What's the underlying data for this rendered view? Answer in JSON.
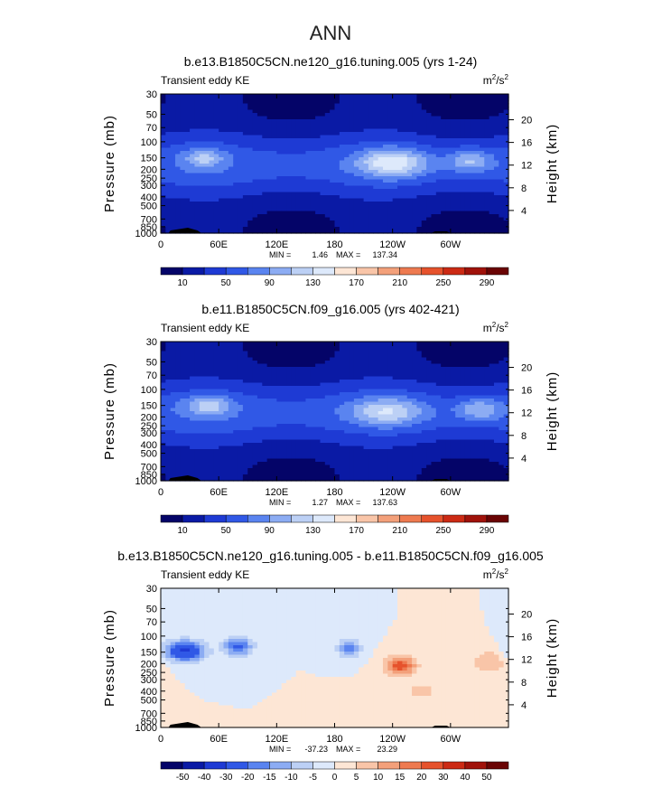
{
  "figure_title": "ANN",
  "chart_data": [
    {
      "type": "heatmap",
      "title": "b.e13.B1850C5CN.ne120_g16.tuning.005 (yrs 1-24)",
      "left_label": "Transient eddy KE",
      "units": "m²/s²",
      "units_base": "m",
      "units_exp1": "2",
      "units_mid": "/s",
      "units_exp2": "2",
      "ylabel": "Pressure (mb)",
      "ylabel_right": "Height (km)",
      "pressure_ticks": [
        "30",
        "50",
        "70",
        "100",
        "150",
        "200",
        "250",
        "300",
        "400",
        "500",
        "700",
        "850",
        "1000"
      ],
      "height_ticks": [
        "20",
        "16",
        "12",
        "8",
        "4"
      ],
      "xticks": [
        "0",
        "60E",
        "120E",
        "180",
        "120W",
        "60W"
      ],
      "min_label": "MIN =",
      "min_value": "1.46",
      "max_label": "MAX =",
      "max_value": "137.34",
      "colorbar_labels": [
        "10",
        "50",
        "90",
        "130",
        "170",
        "210",
        "250",
        "290"
      ],
      "colorbar_colors": [
        "#040468",
        "#0a1aa5",
        "#1e3ad4",
        "#3058e6",
        "#5a84f0",
        "#8cacf3",
        "#bcd0f5",
        "#dde9fb",
        "#fde6d5",
        "#f9c5a8",
        "#f3a07a",
        "#ee7a50",
        "#e6522c",
        "#cc2a14",
        "#a0120a",
        "#6a0404"
      ],
      "levels": [
        0,
        10,
        30,
        50,
        70,
        90,
        110,
        130,
        150,
        170,
        190,
        210,
        230,
        250,
        270,
        290
      ],
      "kind": "abs",
      "features": [
        {
          "lon": 45,
          "p": 150,
          "amp": 105,
          "wlon": 22,
          "wlogp": 0.11
        },
        {
          "lon": 240,
          "p": 170,
          "amp": 137,
          "wlon": 34,
          "wlogp": 0.15
        },
        {
          "lon": 320,
          "p": 160,
          "amp": 110,
          "wlon": 22,
          "wlogp": 0.12
        }
      ]
    },
    {
      "type": "heatmap",
      "title": "b.e11.B1850C5CN.f09_g16.005 (yrs 402-421)",
      "left_label": "Transient eddy KE",
      "units": "m²/s²",
      "units_base": "m",
      "units_exp1": "2",
      "units_mid": "/s",
      "units_exp2": "2",
      "ylabel": "Pressure (mb)",
      "ylabel_right": "Height (km)",
      "pressure_ticks": [
        "30",
        "50",
        "70",
        "100",
        "150",
        "200",
        "250",
        "300",
        "400",
        "500",
        "700",
        "850",
        "1000"
      ],
      "height_ticks": [
        "20",
        "16",
        "12",
        "8",
        "4"
      ],
      "xticks": [
        "0",
        "60E",
        "120E",
        "180",
        "120W",
        "60W"
      ],
      "min_label": "MIN =",
      "min_value": "1.27",
      "max_label": "MAX =",
      "max_value": "137.63",
      "colorbar_labels": [
        "10",
        "50",
        "90",
        "130",
        "170",
        "210",
        "250",
        "290"
      ],
      "colorbar_colors": [
        "#040468",
        "#0a1aa5",
        "#1e3ad4",
        "#3058e6",
        "#5a84f0",
        "#8cacf3",
        "#bcd0f5",
        "#dde9fb",
        "#fde6d5",
        "#f9c5a8",
        "#f3a07a",
        "#ee7a50",
        "#e6522c",
        "#cc2a14",
        "#a0120a",
        "#6a0404"
      ],
      "levels": [
        0,
        10,
        30,
        50,
        70,
        90,
        110,
        130,
        150,
        170,
        190,
        210,
        230,
        250,
        270,
        290
      ],
      "kind": "abs",
      "features": [
        {
          "lon": 50,
          "p": 150,
          "amp": 112,
          "wlon": 24,
          "wlogp": 0.11
        },
        {
          "lon": 235,
          "p": 175,
          "amp": 120,
          "wlon": 36,
          "wlogp": 0.15
        },
        {
          "lon": 330,
          "p": 165,
          "amp": 108,
          "wlon": 22,
          "wlogp": 0.12
        }
      ]
    },
    {
      "type": "heatmap",
      "title": "b.e13.B1850C5CN.ne120_g16.tuning.005 - b.e11.B1850C5CN.f09_g16.005",
      "left_label": "Transient eddy KE",
      "units": "m²/s²",
      "units_base": "m",
      "units_exp1": "2",
      "units_mid": "/s",
      "units_exp2": "2",
      "ylabel": "Pressure (mb)",
      "ylabel_right": "Height (km)",
      "pressure_ticks": [
        "30",
        "50",
        "70",
        "100",
        "150",
        "200",
        "250",
        "300",
        "400",
        "500",
        "700",
        "850",
        "1000"
      ],
      "height_ticks": [
        "20",
        "16",
        "12",
        "8",
        "4"
      ],
      "xticks": [
        "0",
        "60E",
        "120E",
        "180",
        "120W",
        "60W"
      ],
      "min_label": "MIN =",
      "min_value": "-37.23",
      "max_label": "MAX =",
      "max_value": "23.29",
      "colorbar_labels": [
        "-50",
        "-40",
        "-30",
        "-20",
        "-15",
        "-10",
        "-5",
        "0",
        "5",
        "10",
        "15",
        "20",
        "30",
        "40",
        "50"
      ],
      "colorbar_colors": [
        "#040468",
        "#0a1aa5",
        "#1e3ad4",
        "#3058e6",
        "#5a84f0",
        "#8cacf3",
        "#bcd0f5",
        "#dde9fb",
        "#fde6d5",
        "#f9c5a8",
        "#f3a07a",
        "#ee7a50",
        "#e6522c",
        "#cc2a14",
        "#a0120a",
        "#6a0404"
      ],
      "levels": [
        -50,
        -40,
        -30,
        -20,
        -15,
        -10,
        -5,
        0,
        5,
        10,
        15,
        20,
        30,
        40,
        50
      ],
      "kind": "diff",
      "features": [
        {
          "lon": 25,
          "p": 145,
          "amp": -32,
          "wlon": 20,
          "wlogp": 0.11
        },
        {
          "lon": 80,
          "p": 130,
          "amp": -22,
          "wlon": 15,
          "wlogp": 0.1
        },
        {
          "lon": 195,
          "p": 135,
          "amp": -18,
          "wlon": 12,
          "wlogp": 0.1
        },
        {
          "lon": 248,
          "p": 210,
          "amp": 23,
          "wlon": 16,
          "wlogp": 0.1
        },
        {
          "lon": 340,
          "p": 190,
          "amp": 10,
          "wlon": 18,
          "wlogp": 0.12
        },
        {
          "lon": 270,
          "p": 400,
          "amp": 6,
          "wlon": 28,
          "wlogp": 0.15
        }
      ]
    }
  ]
}
